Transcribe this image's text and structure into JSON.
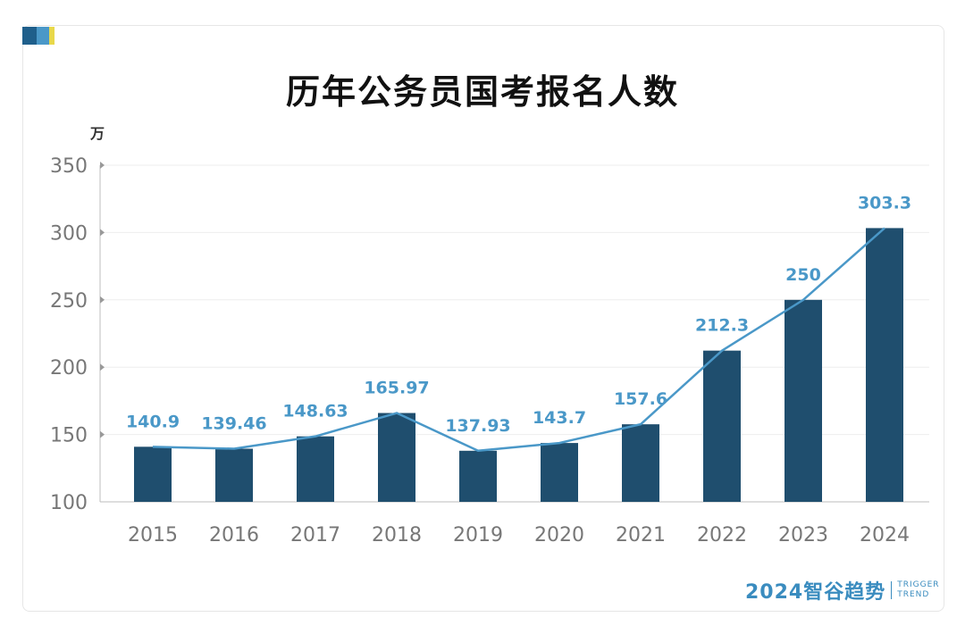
{
  "title": "历年公务员国考报名人数",
  "unit": "万",
  "watermark": {
    "main": "2024智谷趋势",
    "en_line1": "TRIGGER",
    "en_line2": "TREND"
  },
  "colors": {
    "bar": "#1f4e6e",
    "line": "#4a98c8",
    "label": "#4a98c8",
    "axis_text": "#777777",
    "grid": "#eeeeee",
    "corner": [
      "#1f5f8b",
      "#4a98c8",
      "#e8d84a"
    ]
  },
  "chart_data": {
    "type": "bar",
    "title": "历年公务员国考报名人数",
    "ylabel": "万",
    "categories": [
      "2015",
      "2016",
      "2017",
      "2018",
      "2019",
      "2020",
      "2021",
      "2022",
      "2023",
      "2024"
    ],
    "series": [
      {
        "type": "bar",
        "values": [
          140.9,
          139.46,
          148.63,
          165.97,
          137.93,
          143.7,
          157.6,
          212.3,
          250,
          303.3
        ]
      },
      {
        "type": "line",
        "values": [
          140.9,
          139.46,
          148.63,
          165.97,
          137.93,
          143.7,
          157.6,
          212.3,
          250,
          303.3
        ]
      }
    ],
    "data_labels": [
      "140.9",
      "139.46",
      "148.63",
      "165.97",
      "137.93",
      "143.7",
      "157.6",
      "212.3",
      "250",
      "303.3"
    ],
    "ylim": [
      100,
      350
    ],
    "yticks": [
      100,
      150,
      200,
      250,
      300,
      350
    ],
    "grid": true,
    "legend": "none"
  }
}
